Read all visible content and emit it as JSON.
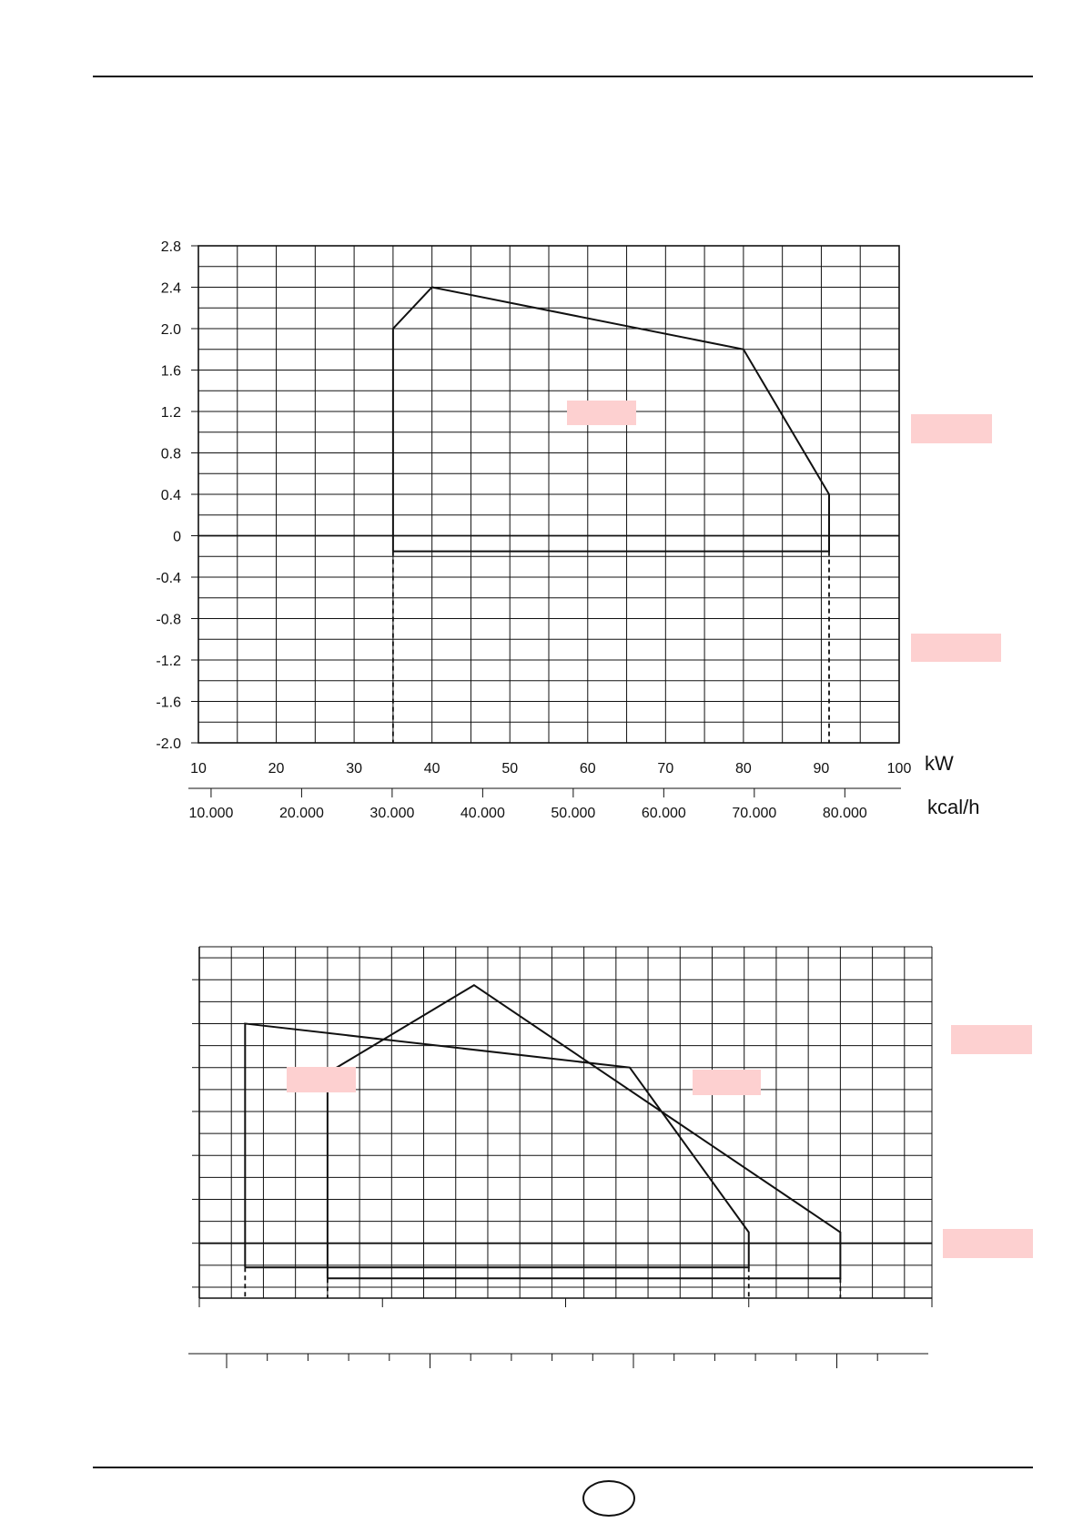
{
  "page": {
    "number_label": ""
  },
  "colors": {
    "line": "#111111",
    "label_box": "#fdd0d0",
    "background": "#ffffff"
  },
  "chart_data": [
    {
      "type": "line",
      "title": "",
      "xlabel": "kW",
      "x2label": "kcal/h",
      "ylabel": "",
      "xlim": [
        10,
        100
      ],
      "ylim": [
        -2.0,
        2.8
      ],
      "x_ticks": [
        10,
        20,
        30,
        40,
        50,
        60,
        70,
        80,
        90,
        100
      ],
      "x_tick_labels": [
        "10",
        "20",
        "30",
        "40",
        "50",
        "60",
        "70",
        "80",
        "90",
        "100"
      ],
      "x2_tick_values_kcal": [
        10000,
        20000,
        30000,
        40000,
        50000,
        60000,
        70000,
        80000
      ],
      "x2_tick_labels": [
        "10.000",
        "20.000",
        "30.000",
        "40.000",
        "50.000",
        "60.000",
        "70.000",
        "80.000"
      ],
      "y_ticks": [
        2.8,
        2.4,
        2.0,
        1.6,
        1.2,
        0.8,
        0.4,
        0,
        -0.4,
        -0.8,
        -1.2,
        -1.6,
        -2.0
      ],
      "y_tick_labels": [
        "2.8",
        "2.4",
        "2.0",
        "1.6",
        "1.2",
        "0.8",
        "0.4",
        "0",
        "-0.4",
        "-0.8",
        "-1.2",
        "-1.6",
        "-2.0"
      ],
      "grid": true,
      "series": [
        {
          "points": [
            [
              35,
              -0.15
            ],
            [
              35,
              2.0
            ],
            [
              40,
              2.4
            ],
            [
              80,
              1.8
            ],
            [
              91,
              0.4
            ],
            [
              91,
              -0.15
            ],
            [
              35,
              -0.15
            ]
          ]
        }
      ],
      "dashed_verticals": [
        35,
        91
      ]
    },
    {
      "type": "line",
      "title": "",
      "xlabel": "",
      "ylabel": "",
      "x_ticks_count": 5,
      "y_ticks_count": 8,
      "grid": true,
      "series": [
        {
          "points": [
            [
              5,
              -2.2
            ],
            [
              5,
              20.0
            ],
            [
              47,
              16.0
            ],
            [
              60,
              1.0
            ],
            [
              60,
              -2.2
            ],
            [
              5,
              -2.2
            ]
          ]
        },
        {
          "points": [
            [
              14,
              -3.2
            ],
            [
              14,
              15.5
            ],
            [
              30,
              23.5
            ],
            [
              70,
              1.0
            ],
            [
              70,
              -3.2
            ],
            [
              14,
              -3.2
            ]
          ]
        }
      ],
      "dashed_verticals": [
        5,
        14,
        60,
        70
      ]
    }
  ]
}
